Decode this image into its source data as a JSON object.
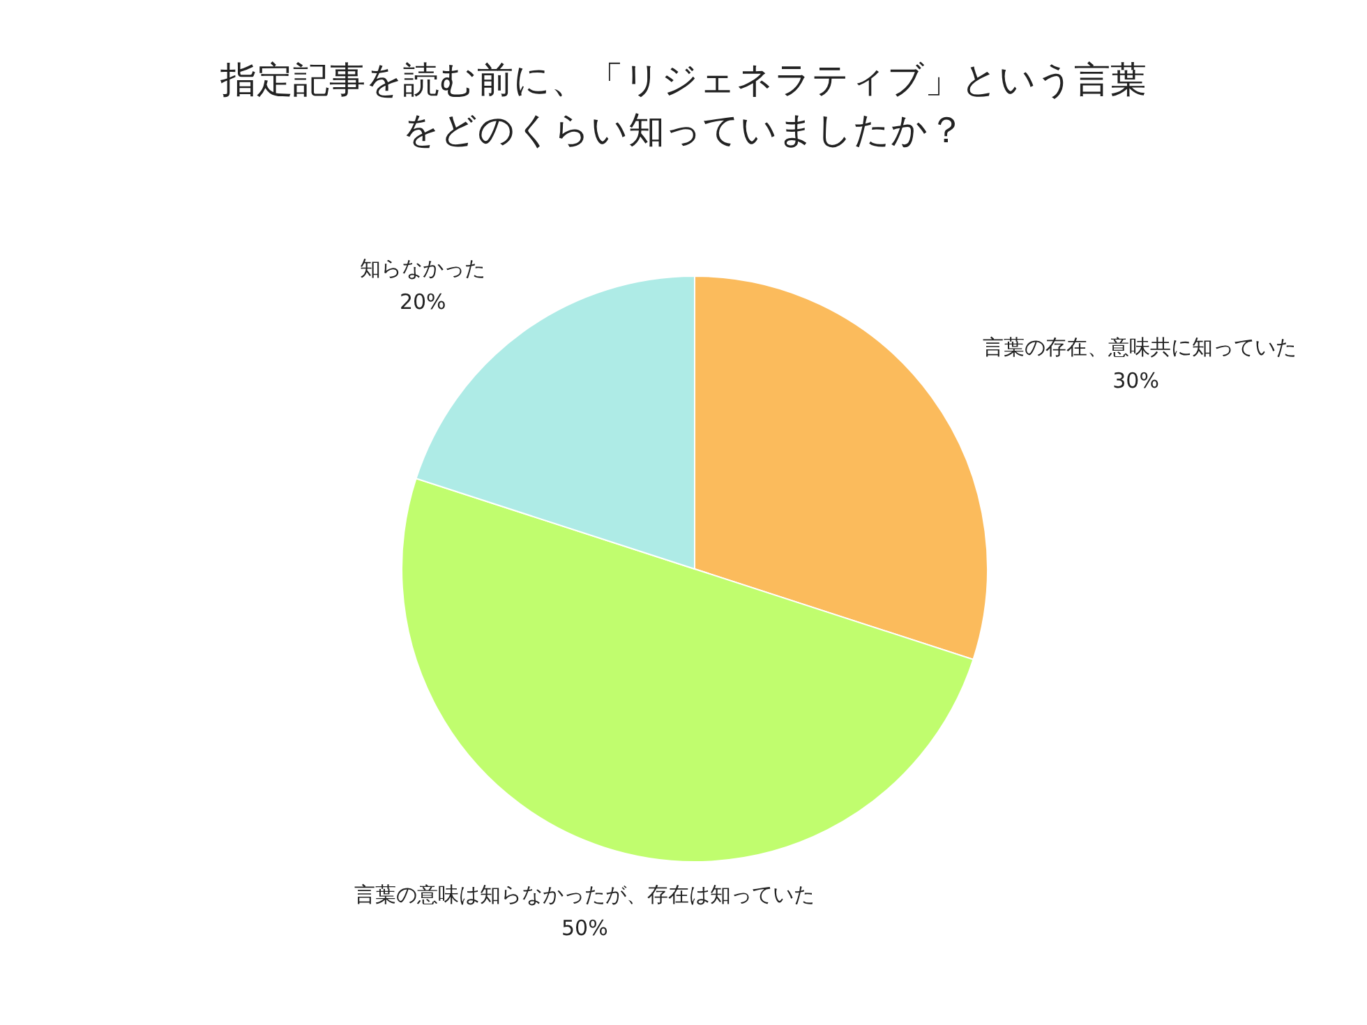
{
  "chart_data": {
    "type": "pie",
    "title": "指定記事を読む前に、「リジェネラティブ」という言葉をどのくらい知っていましたか？",
    "categories": [
      "言葉の存在、意味共に知っていた",
      "言葉の意味は知らなかったが、存在は知っていた",
      "知らなかった"
    ],
    "values": [
      30,
      50,
      20
    ],
    "colors": [
      "#fbbb5c",
      "#c0fd6e",
      "#aeebe6"
    ],
    "value_labels": [
      "30%",
      "50%",
      "20%"
    ]
  }
}
